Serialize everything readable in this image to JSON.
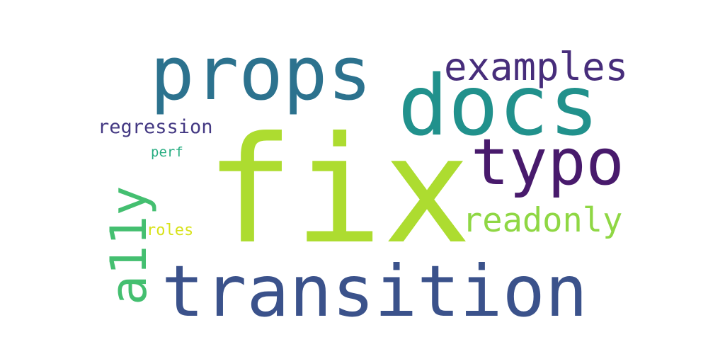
{
  "words": [
    {
      "text": "fix",
      "color": "#addc30"
    },
    {
      "text": "transition",
      "color": "#3b528b"
    },
    {
      "text": "docs",
      "color": "#21918c"
    },
    {
      "text": "props",
      "color": "#2c728e"
    },
    {
      "text": "typo",
      "color": "#481a6c"
    },
    {
      "text": "examples",
      "color": "#472d7b"
    },
    {
      "text": "readonly",
      "color": "#8fd744"
    },
    {
      "text": "a11y",
      "color": "#44bf70"
    },
    {
      "text": "regression",
      "color": "#443983"
    },
    {
      "text": "perf",
      "color": "#27ad81"
    },
    {
      "text": "roles",
      "color": "#d8e219"
    }
  ]
}
